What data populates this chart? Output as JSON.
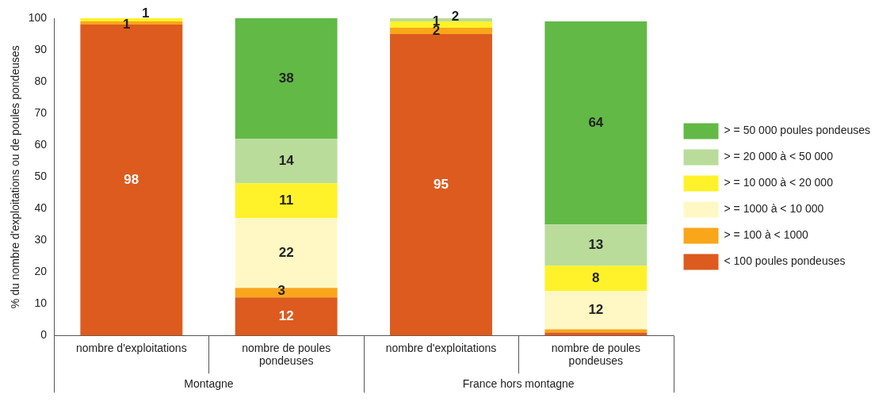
{
  "chart_data": {
    "type": "bar",
    "stacked": true,
    "ylabel": "% du nombre d'exploitations ou de poules pondeuses",
    "categories": [
      "nombre d'exploitations",
      "nombre de poules pondeuses",
      "nombre d'exploitations",
      "nombre de poules pondeuses"
    ],
    "series": [
      {
        "name": "< 100 poules pondeuses",
        "color": "#dd5b1e",
        "values": [
          98,
          12,
          95,
          1
        ],
        "value_labels": [
          "98",
          "12",
          "95",
          null
        ]
      },
      {
        "name": "> = 100 à < 1000",
        "color": "#f9a61b",
        "values": [
          1,
          3,
          2,
          1
        ],
        "value_labels": [
          "1",
          "3",
          "2",
          null
        ]
      },
      {
        "name": "> = 1000 à < 10 000",
        "color": "#fff8c4",
        "values": [
          0,
          22,
          0,
          12
        ],
        "value_labels": [
          null,
          "22",
          null,
          "12"
        ]
      },
      {
        "name": "> = 10 000 à < 20 000",
        "color": "#fff22a",
        "values": [
          1,
          11,
          2,
          8
        ],
        "value_labels": [
          "1",
          "11",
          "2",
          "8"
        ]
      },
      {
        "name": "> = 20 000 à < 50 000",
        "color": "#b9dc9b",
        "values": [
          0,
          14,
          1,
          13
        ],
        "value_labels": [
          null,
          "14",
          "1",
          "13"
        ]
      },
      {
        "name": "> = 50 000 poules pondeuses",
        "color": "#62b946",
        "values": [
          0,
          38,
          0,
          64
        ],
        "value_labels": [
          null,
          "38",
          null,
          "64"
        ]
      }
    ],
    "ylim": [
      0,
      100
    ],
    "yticks": [
      0,
      10,
      20,
      30,
      40,
      50,
      60,
      70,
      80,
      90,
      100
    ],
    "grid": false,
    "legend": "right",
    "annotations": [
      "Montagne",
      "France hors montagne"
    ]
  }
}
